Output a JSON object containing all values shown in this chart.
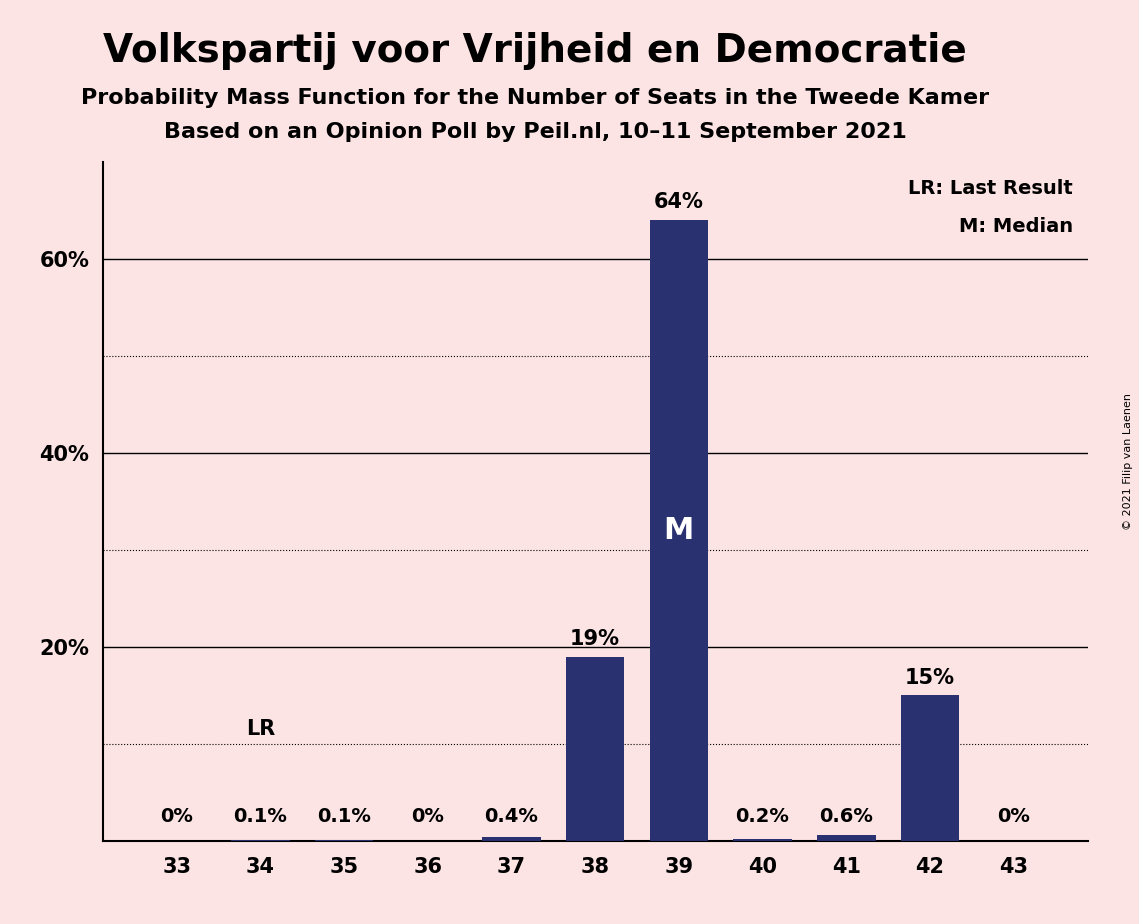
{
  "title": "Volkspartij voor Vrijheid en Democratie",
  "subtitle1": "Probability Mass Function for the Number of Seats in the Tweede Kamer",
  "subtitle2": "Based on an Opinion Poll by Peil.nl, 10–11 September 2021",
  "copyright": "© 2021 Filip van Laenen",
  "categories": [
    33,
    34,
    35,
    36,
    37,
    38,
    39,
    40,
    41,
    42,
    43
  ],
  "values": [
    0.0,
    0.1,
    0.1,
    0.0,
    0.4,
    19.0,
    64.0,
    0.2,
    0.6,
    15.0,
    0.0
  ],
  "bar_color": "#2a3170",
  "background_color": "#fce4e4",
  "bar_labels": [
    "0%",
    "0.1%",
    "0.1%",
    "0%",
    "0.4%",
    "19%",
    "64%",
    "0.2%",
    "0.6%",
    "15%",
    "0%"
  ],
  "median_bar": 39,
  "lr_bar": 34,
  "ylim": [
    0,
    70
  ],
  "solid_lines": [
    20,
    40,
    60
  ],
  "dotted_lines": [
    10,
    30,
    50
  ],
  "yticks": [
    20,
    40,
    60
  ],
  "ytick_labels": [
    "20%",
    "40%",
    "60%"
  ],
  "legend_lr": "LR: Last Result",
  "legend_m": "M: Median",
  "title_fontsize": 28,
  "subtitle_fontsize": 16,
  "bar_label_fontsize": 15,
  "axis_fontsize": 15
}
